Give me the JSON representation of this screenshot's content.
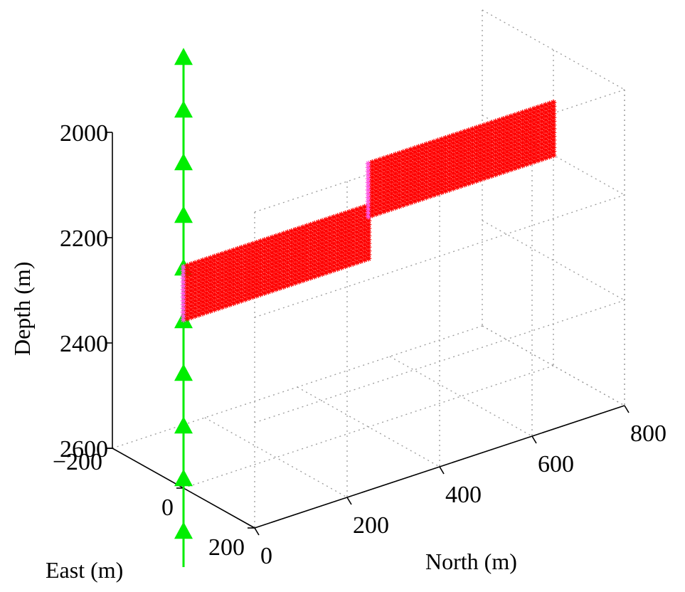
{
  "chart_data": {
    "type": "scatter3d",
    "title": "",
    "axes": {
      "north": {
        "label": "North (m)",
        "range": [
          0,
          800
        ],
        "ticks": [
          0,
          200,
          400,
          600,
          800
        ]
      },
      "east": {
        "label": "East (m)",
        "range": [
          -200,
          200
        ],
        "ticks": [
          -200,
          0,
          200
        ]
      },
      "depth": {
        "label": "Depth (m)",
        "range": [
          2000,
          2600
        ],
        "ticks": [
          2000,
          2200,
          2400,
          2600
        ],
        "reversed": true
      }
    },
    "grid": true,
    "series": [
      {
        "kind": "receivers",
        "marker": "triangle",
        "color": "#00ee00",
        "north": 0,
        "east": 0,
        "depth_top": 1780,
        "depth_bottom": 2750,
        "depths": [
          1780,
          1880,
          1980,
          2080,
          2180,
          2280,
          2380,
          2480,
          2580,
          2680
        ]
      },
      {
        "kind": "fracture-sources",
        "marker": "asterisk",
        "color": "#ff0000",
        "edge_color": "#ff55dd",
        "north_range": [
          0,
          400
        ],
        "east": 0,
        "depth_range": [
          2180,
          2280
        ]
      },
      {
        "kind": "fracture-sources",
        "marker": "asterisk",
        "color": "#ff0000",
        "edge_color": "#ff55dd",
        "north_range": [
          400,
          800
        ],
        "east": 0,
        "depth_range": [
          2100,
          2200
        ]
      }
    ]
  }
}
